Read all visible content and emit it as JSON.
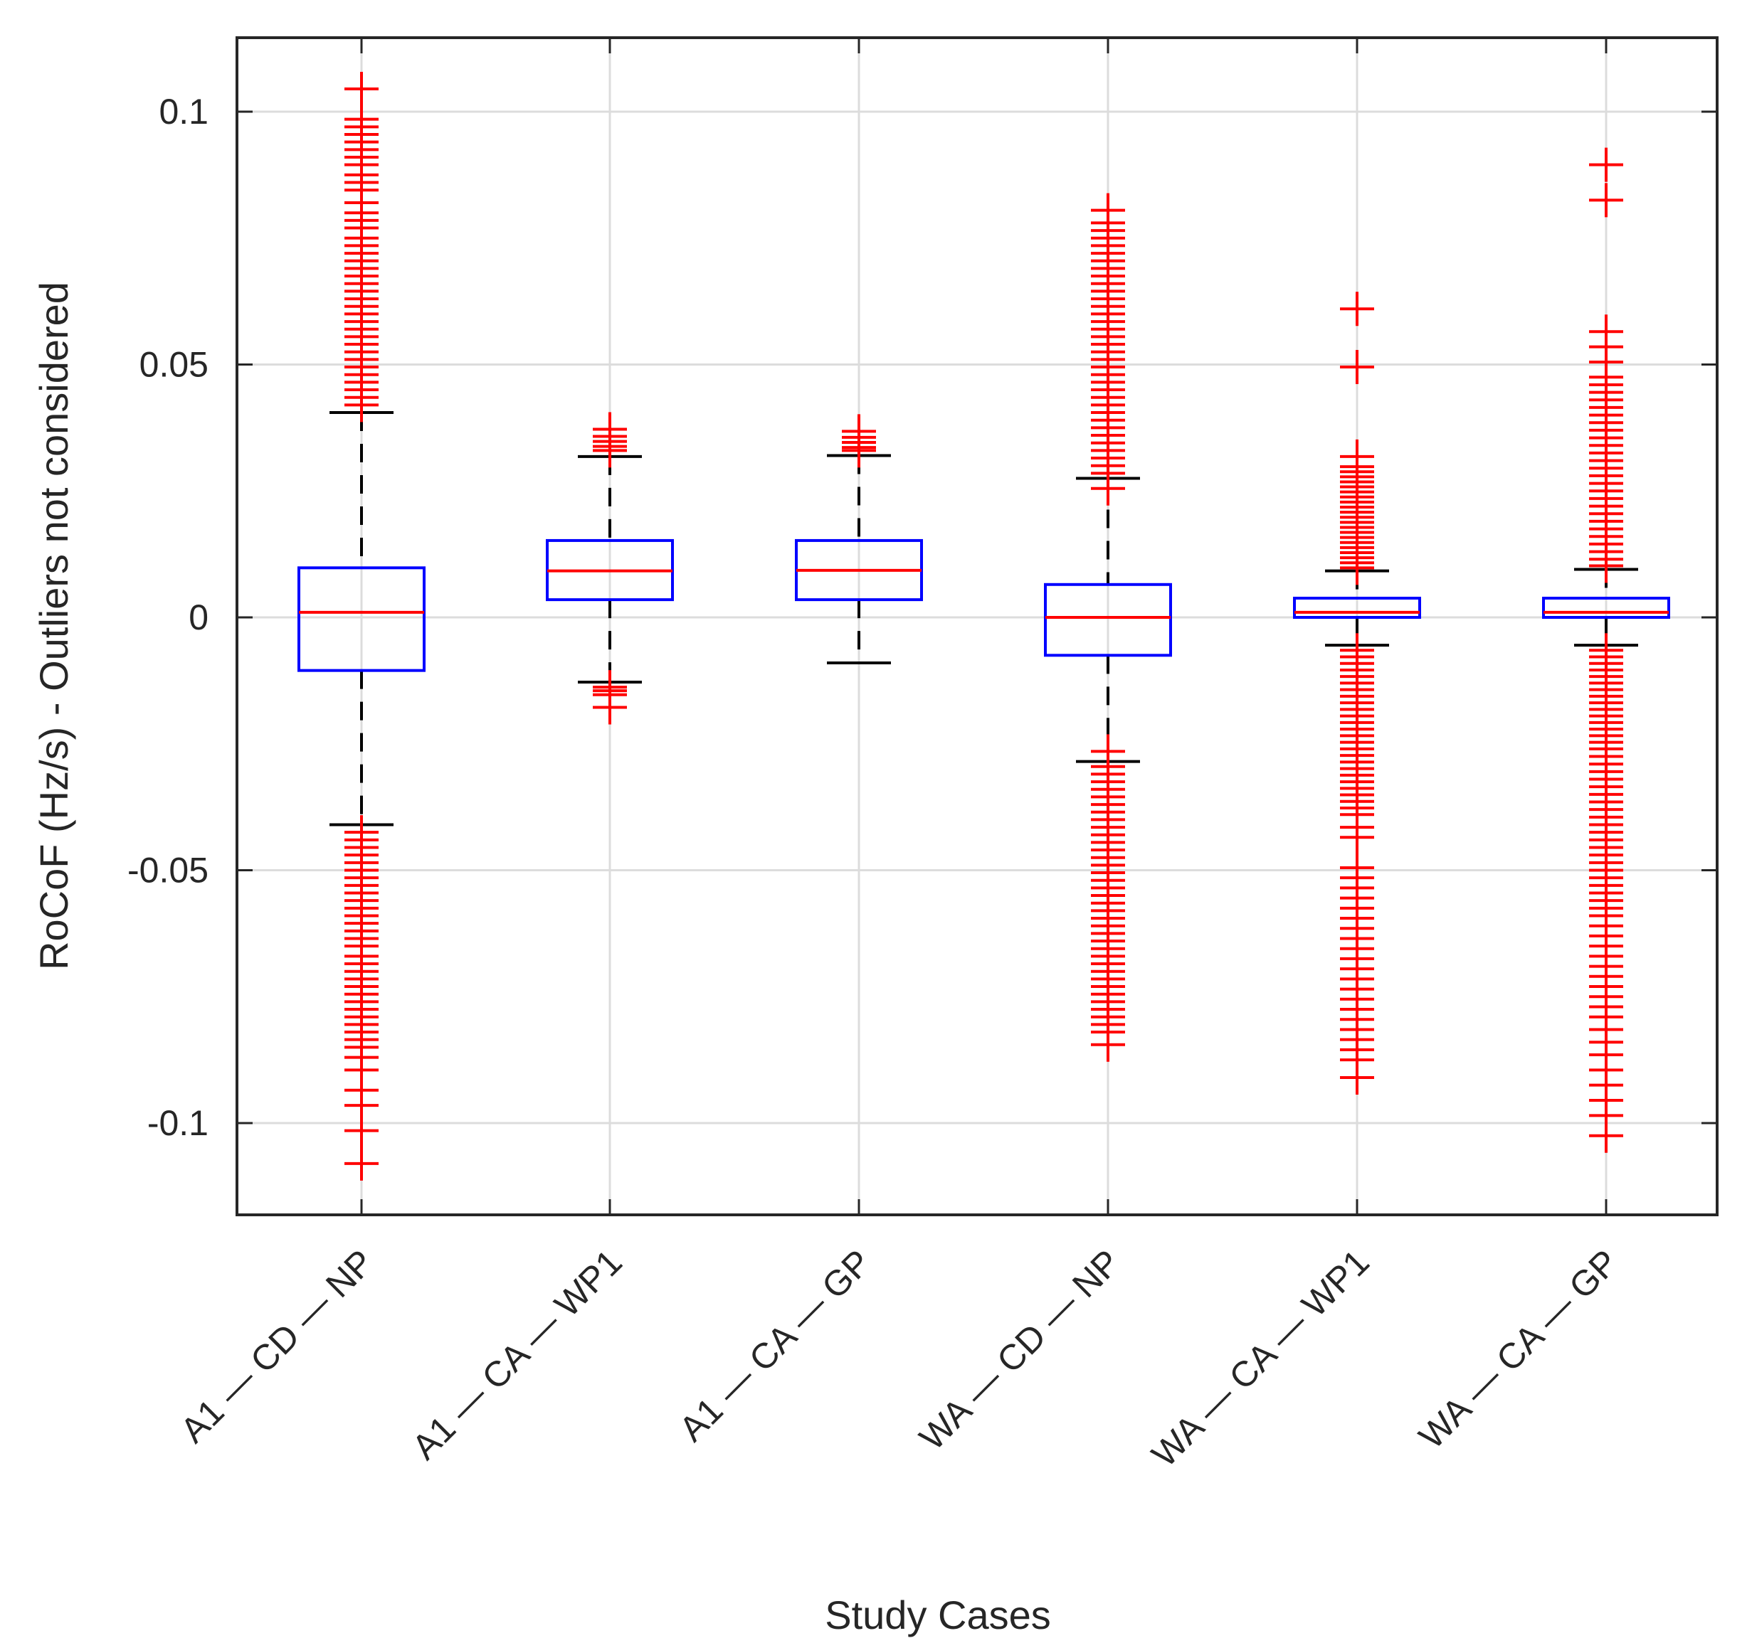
{
  "chart_data": {
    "type": "boxplot",
    "ylabel": "RoCoF (Hz/s) - Outliers not considered",
    "xlabel": "Study Cases",
    "ylim": [
      -0.118,
      0.114
    ],
    "yticks": [
      {
        "value": 0.1,
        "label": "0.1"
      },
      {
        "value": 0.05,
        "label": "0.05"
      },
      {
        "value": 0,
        "label": "0"
      },
      {
        "value": -0.05,
        "label": "-0.05"
      },
      {
        "value": -0.1,
        "label": "-0.1"
      }
    ],
    "grid": true,
    "colors": {
      "box": "#0000ff",
      "median": "#ff0000",
      "whisker": "#000000",
      "outlier": "#ff0000",
      "grid": "#dcdcdc",
      "axis": "#262626"
    },
    "categories": [
      {
        "label": "A1 — CD — NP",
        "q1": -0.0105,
        "median": 0.001,
        "q3": 0.0098,
        "whisker_low": -0.041,
        "whisker_high": 0.0405,
        "outliers": [
          0.1045,
          0.0985,
          0.097,
          0.0955,
          0.094,
          0.0925,
          0.091,
          0.0895,
          0.0875,
          0.086,
          0.0845,
          0.082,
          0.08,
          0.0785,
          0.077,
          0.075,
          0.0735,
          0.072,
          0.0705,
          0.069,
          0.0675,
          0.066,
          0.0645,
          0.063,
          0.0615,
          0.06,
          0.0585,
          0.057,
          0.0555,
          0.054,
          0.0525,
          0.051,
          0.0495,
          0.048,
          0.0465,
          0.045,
          0.0435,
          0.042,
          -0.0425,
          -0.044,
          -0.0455,
          -0.047,
          -0.0485,
          -0.05,
          -0.0515,
          -0.053,
          -0.0545,
          -0.056,
          -0.0575,
          -0.059,
          -0.0605,
          -0.062,
          -0.0635,
          -0.065,
          -0.067,
          -0.0685,
          -0.07,
          -0.0715,
          -0.073,
          -0.0745,
          -0.076,
          -0.0775,
          -0.079,
          -0.0805,
          -0.082,
          -0.0835,
          -0.085,
          -0.087,
          -0.0895,
          -0.0935,
          -0.0965,
          -0.1015,
          -0.108
        ]
      },
      {
        "label": "A1 — CA — WP1",
        "q1": 0.0035,
        "median": 0.0092,
        "q3": 0.0152,
        "whisker_low": -0.0128,
        "whisker_high": 0.0318,
        "outliers": [
          0.0372,
          0.0358,
          0.0348,
          0.0338,
          0.033,
          -0.0138,
          -0.0145,
          -0.0153,
          -0.0178
        ]
      },
      {
        "label": "A1 — CA — GP",
        "q1": 0.0035,
        "median": 0.0093,
        "q3": 0.0152,
        "whisker_low": -0.009,
        "whisker_high": 0.032,
        "outliers": [
          0.0368,
          0.0356,
          0.0346,
          0.0336,
          0.033
        ]
      },
      {
        "label": "WA — CD — NP",
        "q1": -0.0075,
        "median": 0.0,
        "q3": 0.0065,
        "whisker_low": -0.0285,
        "whisker_high": 0.0275,
        "outliers": [
          0.0805,
          0.078,
          0.0765,
          0.075,
          0.0735,
          0.072,
          0.0705,
          0.069,
          0.0675,
          0.066,
          0.0645,
          0.063,
          0.0615,
          0.06,
          0.0585,
          0.057,
          0.0555,
          0.054,
          0.0525,
          0.051,
          0.0495,
          0.048,
          0.0465,
          0.045,
          0.0435,
          0.042,
          0.0405,
          0.039,
          0.0375,
          0.036,
          0.0345,
          0.033,
          0.0315,
          0.03,
          0.0285,
          0.0255,
          -0.0265,
          -0.0295,
          -0.031,
          -0.0325,
          -0.034,
          -0.0355,
          -0.037,
          -0.0385,
          -0.04,
          -0.0415,
          -0.043,
          -0.0445,
          -0.046,
          -0.0475,
          -0.049,
          -0.0505,
          -0.052,
          -0.0535,
          -0.055,
          -0.0565,
          -0.058,
          -0.0595,
          -0.061,
          -0.0625,
          -0.064,
          -0.0655,
          -0.067,
          -0.0685,
          -0.07,
          -0.0715,
          -0.073,
          -0.0745,
          -0.076,
          -0.0775,
          -0.079,
          -0.0805,
          -0.082,
          -0.0845
        ]
      },
      {
        "label": "WA — CA — WP1",
        "q1": 0.0,
        "median": 0.001,
        "q3": 0.0038,
        "whisker_low": -0.0055,
        "whisker_high": 0.0092,
        "outliers": [
          0.061,
          0.0495,
          0.0318,
          0.0298,
          0.0288,
          0.0278,
          0.0268,
          0.0258,
          0.0248,
          0.0238,
          0.0228,
          0.0218,
          0.0208,
          0.0198,
          0.0188,
          0.0178,
          0.0168,
          0.0158,
          0.0148,
          0.0138,
          0.0128,
          0.0118,
          0.0108,
          0.0098,
          -0.0065,
          -0.0078,
          -0.0091,
          -0.0104,
          -0.0117,
          -0.013,
          -0.0143,
          -0.0156,
          -0.0169,
          -0.0182,
          -0.0195,
          -0.0208,
          -0.0221,
          -0.0234,
          -0.0247,
          -0.026,
          -0.0273,
          -0.0286,
          -0.0299,
          -0.0312,
          -0.0325,
          -0.0338,
          -0.0351,
          -0.0364,
          -0.0377,
          -0.039,
          -0.0415,
          -0.0435,
          -0.0495,
          -0.0515,
          -0.0535,
          -0.0555,
          -0.0575,
          -0.0595,
          -0.0615,
          -0.0635,
          -0.0655,
          -0.0675,
          -0.0695,
          -0.0715,
          -0.0735,
          -0.0755,
          -0.0775,
          -0.0795,
          -0.0815,
          -0.0835,
          -0.0855,
          -0.0875,
          -0.091
        ]
      },
      {
        "label": "WA — CA — GP",
        "q1": 0.0,
        "median": 0.001,
        "q3": 0.0038,
        "whisker_low": -0.0055,
        "whisker_high": 0.0095,
        "outliers": [
          0.0895,
          0.0825,
          0.0565,
          0.0535,
          0.0505,
          0.0475,
          0.046,
          0.0445,
          0.043,
          0.0415,
          0.04,
          0.0385,
          0.037,
          0.0355,
          0.034,
          0.0325,
          0.031,
          0.0295,
          0.028,
          0.0265,
          0.025,
          0.0235,
          0.022,
          0.0205,
          0.019,
          0.0175,
          0.016,
          0.0145,
          0.013,
          0.0115,
          0.0102,
          -0.0065,
          -0.0078,
          -0.0091,
          -0.0104,
          -0.0117,
          -0.013,
          -0.0143,
          -0.0156,
          -0.0169,
          -0.0182,
          -0.0195,
          -0.0208,
          -0.0221,
          -0.0234,
          -0.0247,
          -0.026,
          -0.0275,
          -0.029,
          -0.0305,
          -0.032,
          -0.0335,
          -0.035,
          -0.0365,
          -0.038,
          -0.0395,
          -0.041,
          -0.0425,
          -0.044,
          -0.0455,
          -0.047,
          -0.0485,
          -0.05,
          -0.0515,
          -0.053,
          -0.0545,
          -0.056,
          -0.0575,
          -0.059,
          -0.061,
          -0.063,
          -0.065,
          -0.067,
          -0.069,
          -0.071,
          -0.073,
          -0.075,
          -0.077,
          -0.079,
          -0.0815,
          -0.084,
          -0.0865,
          -0.0895,
          -0.0925,
          -0.0955,
          -0.0985,
          -0.1025
        ]
      }
    ]
  }
}
